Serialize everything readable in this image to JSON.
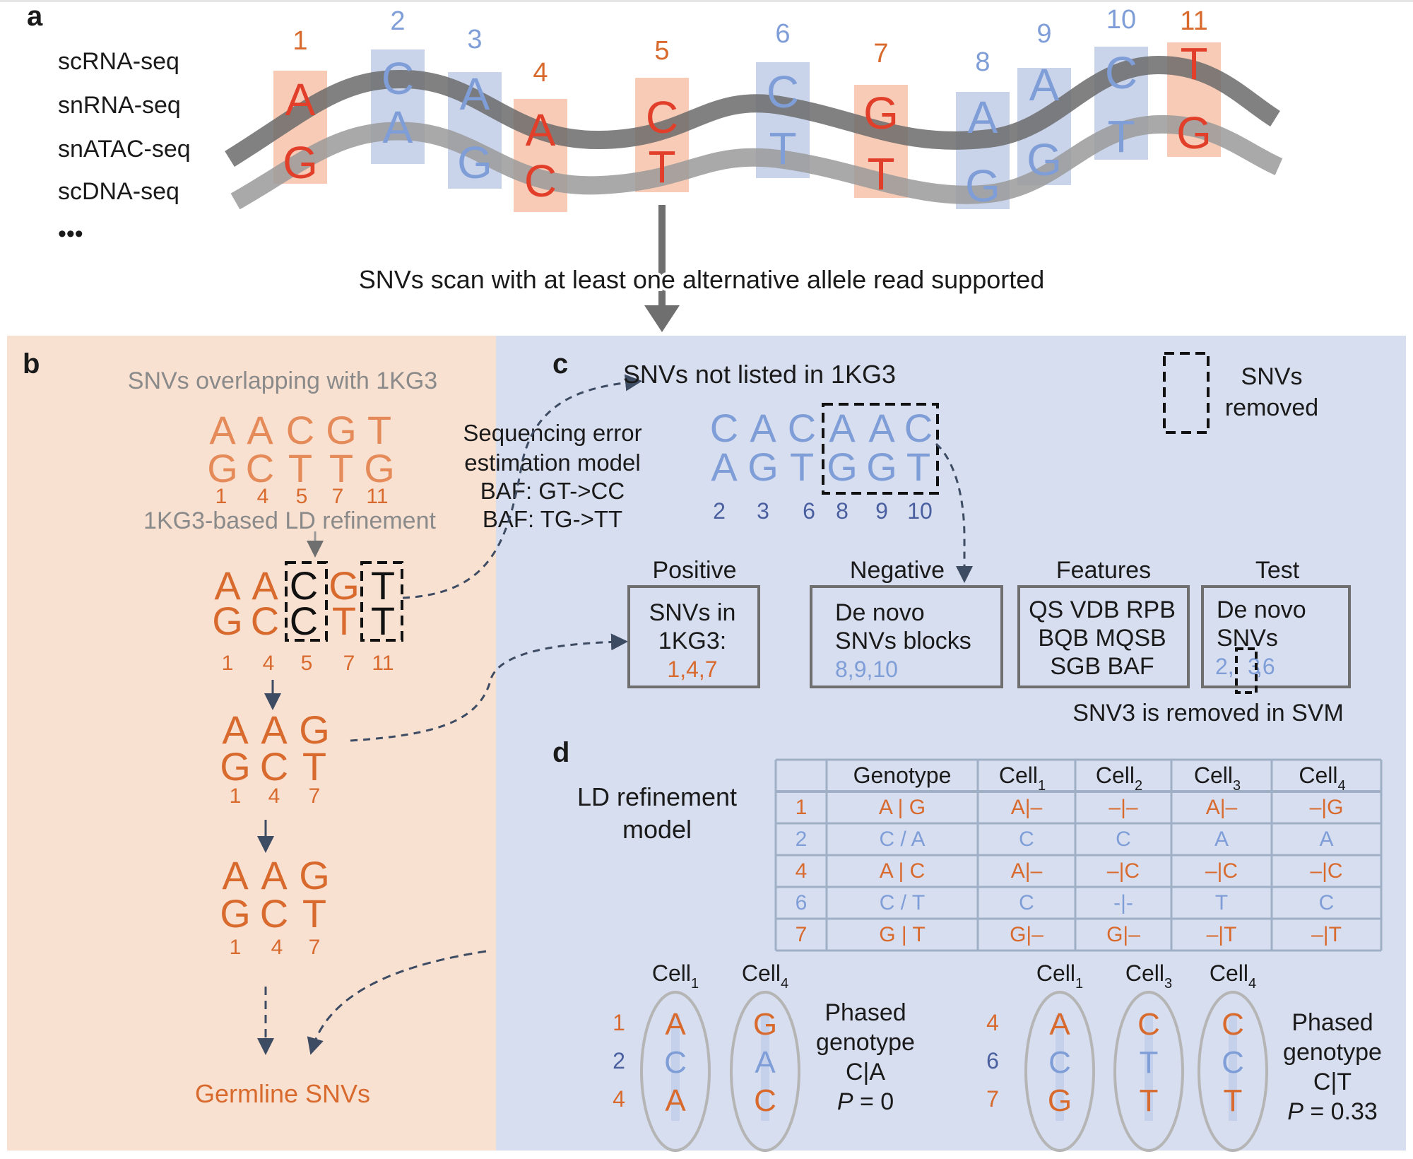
{
  "panels": {
    "a": "a",
    "b": "b",
    "c": "c",
    "d": "d"
  },
  "colors": {
    "orange": "#d96a2e",
    "orange_light": "#e58b5a",
    "orange_bg": "#f9e1d2",
    "red": "#e23f2b",
    "red_box": "#f6c5ae",
    "blue": "#7f9ed8",
    "blue_dark": "#4a5fa0",
    "blue_bg": "#d7deef",
    "blue_box": "#c3cfe9",
    "gray_text": "#8a8a8a",
    "grid": "#9fb0c6",
    "text": "#1a1a1a"
  },
  "panel_a": {
    "techs": [
      "scRNA-seq",
      "snRNA-seq",
      "snATAC-seq",
      "scDNA-seq",
      "•••"
    ],
    "snvs": [
      {
        "num": "1",
        "top": "A",
        "bottom": "G",
        "color": "orange"
      },
      {
        "num": "2",
        "top": "C",
        "bottom": "A",
        "color": "blue"
      },
      {
        "num": "3",
        "top": "A",
        "bottom": "G",
        "color": "blue"
      },
      {
        "num": "4",
        "top": "A",
        "bottom": "C",
        "color": "orange"
      },
      {
        "num": "5",
        "top": "C",
        "bottom": "T",
        "color": "orange"
      },
      {
        "num": "6",
        "top": "C",
        "bottom": "T",
        "color": "blue"
      },
      {
        "num": "7",
        "top": "G",
        "bottom": "T",
        "color": "orange"
      },
      {
        "num": "8",
        "top": "A",
        "bottom": "G",
        "color": "blue"
      },
      {
        "num": "9",
        "top": "A",
        "bottom": "G",
        "color": "blue"
      },
      {
        "num": "10",
        "top": "C",
        "bottom": "T",
        "color": "blue"
      },
      {
        "num": "11",
        "top": "T",
        "bottom": "G",
        "color": "orange"
      }
    ],
    "scan_text": "SNVs scan with at least one alternative allele read supported"
  },
  "panel_b": {
    "title": "SNVs overlapping with 1KG3",
    "row1_top": [
      "A",
      "A",
      "C",
      "G",
      "T"
    ],
    "row1_bottom": [
      "G",
      "C",
      "T",
      "T",
      "G"
    ],
    "row1_nums": [
      "1",
      "4",
      "5",
      "7",
      "11"
    ],
    "ld_label": "1KG3-based LD refinement",
    "row2_top": [
      "A",
      "A",
      "C",
      "G",
      "T"
    ],
    "row2_bottom": [
      "G",
      "C",
      "C",
      "T",
      "T"
    ],
    "row2_nums": [
      "1",
      "4",
      "5",
      "7",
      "11"
    ],
    "row3_top": [
      "A",
      "A",
      "G"
    ],
    "row3_bottom": [
      "G",
      "C",
      "T"
    ],
    "row3_nums": [
      "1",
      "4",
      "7"
    ],
    "row4_top": [
      "A",
      "A",
      "G"
    ],
    "row4_bottom": [
      "G",
      "C",
      "T"
    ],
    "row4_nums": [
      "1",
      "4",
      "7"
    ],
    "germline": "Germline SNVs",
    "seq_error": [
      "Sequencing error",
      "estimation model",
      "BAF: GT->CC",
      "BAF: TG->TT"
    ]
  },
  "panel_c": {
    "title": "SNVs not listed in 1KG3",
    "top": [
      "C",
      "A",
      "C",
      "A",
      "A",
      "C"
    ],
    "bottom": [
      "A",
      "G",
      "T",
      "G",
      "G",
      "T"
    ],
    "nums": [
      "2",
      "3",
      "6",
      "8",
      "9",
      "10"
    ],
    "legend": [
      "SNVs",
      "removed"
    ],
    "positive": {
      "header": "Positive",
      "lines": [
        "SNVs in",
        "1KG3:"
      ],
      "values": "1,4,7"
    },
    "negative": {
      "header": "Negative",
      "lines": [
        "De novo",
        "SNVs blocks"
      ],
      "values": "8,9,10"
    },
    "features": {
      "header": "Features",
      "lines": [
        "QS VDB RPB",
        "BQB MQSB",
        "SGB BAF"
      ]
    },
    "test": {
      "header": "Test",
      "lines": [
        "De novo",
        "SNVs"
      ],
      "values": [
        "2,",
        "3",
        ",6"
      ]
    },
    "svm_note": "SNV3 is removed in SVM"
  },
  "panel_d": {
    "model_label": [
      "LD refinement",
      "model"
    ],
    "table": {
      "header": [
        "",
        "Genotype",
        "Cell1",
        "Cell2",
        "Cell3",
        "Cell4"
      ],
      "rows": [
        {
          "color": "orange",
          "cells": [
            "1",
            "A | G",
            "A|–",
            "–|–",
            "A|–",
            "–|G"
          ]
        },
        {
          "color": "blue",
          "cells": [
            "2",
            "C / A",
            "C",
            "C",
            "A",
            "A"
          ]
        },
        {
          "color": "orange",
          "cells": [
            "4",
            "A | C",
            "A|–",
            "–|C",
            "–|C",
            "–|C"
          ]
        },
        {
          "color": "blue",
          "cells": [
            "6",
            "C / T",
            "C",
            "-|-",
            "T",
            "C"
          ]
        },
        {
          "color": "orange",
          "cells": [
            "7",
            "G | T",
            "G|–",
            "G|–",
            "–|T",
            "–|T"
          ]
        }
      ]
    },
    "left_group": {
      "row_nums": [
        "1",
        "2",
        "4"
      ],
      "cells": [
        {
          "label": "Cell",
          "sub": "1",
          "letters": [
            "A",
            "C",
            "A"
          ]
        },
        {
          "label": "Cell",
          "sub": "4",
          "letters": [
            "G",
            "A",
            "C"
          ]
        }
      ],
      "phased": [
        "Phased",
        "genotype",
        "C|A"
      ],
      "p_label": "P",
      "p_value": " = 0"
    },
    "right_group": {
      "row_nums": [
        "4",
        "6",
        "7"
      ],
      "cells": [
        {
          "label": "Cell",
          "sub": "1",
          "letters": [
            "A",
            "C",
            "G"
          ]
        },
        {
          "label": "Cell",
          "sub": "3",
          "letters": [
            "C",
            "T",
            "T"
          ]
        },
        {
          "label": "Cell",
          "sub": "4",
          "letters": [
            "C",
            "C",
            "T"
          ]
        }
      ],
      "phased": [
        "Phased",
        "genotype",
        "C|T"
      ],
      "p_label": "P",
      "p_value": " = 0.33"
    }
  }
}
